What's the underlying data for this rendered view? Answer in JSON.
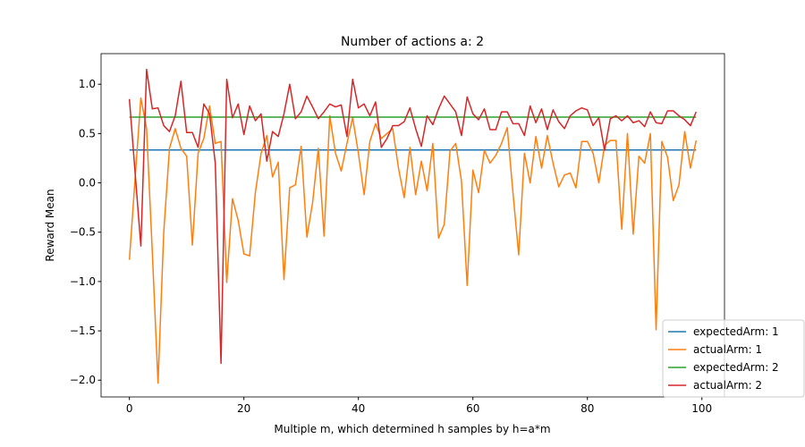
{
  "chart_data": {
    "type": "line",
    "title": "Number of actions a: 2",
    "xlabel": "Multiple m, which determined h samples by h=a*m",
    "ylabel": "Reward Mean",
    "x": [
      0,
      1,
      2,
      3,
      4,
      5,
      6,
      7,
      8,
      9,
      10,
      11,
      12,
      13,
      14,
      15,
      16,
      17,
      18,
      19,
      20,
      21,
      22,
      23,
      24,
      25,
      26,
      27,
      28,
      29,
      30,
      31,
      32,
      33,
      34,
      35,
      36,
      37,
      38,
      39,
      40,
      41,
      42,
      43,
      44,
      45,
      46,
      47,
      48,
      49,
      50,
      51,
      52,
      53,
      54,
      55,
      56,
      57,
      58,
      59,
      60,
      61,
      62,
      63,
      64,
      65,
      66,
      67,
      68,
      69,
      70,
      71,
      72,
      73,
      74,
      75,
      76,
      77,
      78,
      79,
      80,
      81,
      82,
      83,
      84,
      85,
      86,
      87,
      88,
      89,
      90,
      91,
      92,
      93,
      94,
      95,
      96,
      97,
      98,
      99
    ],
    "series": [
      {
        "name": "expectedArm: 1",
        "color": "#1f77b4",
        "values": [
          0.333,
          0.333,
          0.333,
          0.333,
          0.333,
          0.333,
          0.333,
          0.333,
          0.333,
          0.333,
          0.333,
          0.333,
          0.333,
          0.333,
          0.333,
          0.333,
          0.333,
          0.333,
          0.333,
          0.333,
          0.333,
          0.333,
          0.333,
          0.333,
          0.333,
          0.333,
          0.333,
          0.333,
          0.333,
          0.333,
          0.333,
          0.333,
          0.333,
          0.333,
          0.333,
          0.333,
          0.333,
          0.333,
          0.333,
          0.333,
          0.333,
          0.333,
          0.333,
          0.333,
          0.333,
          0.333,
          0.333,
          0.333,
          0.333,
          0.333,
          0.333,
          0.333,
          0.333,
          0.333,
          0.333,
          0.333,
          0.333,
          0.333,
          0.333,
          0.333,
          0.333,
          0.333,
          0.333,
          0.333,
          0.333,
          0.333,
          0.333,
          0.333,
          0.333,
          0.333,
          0.333,
          0.333,
          0.333,
          0.333,
          0.333,
          0.333,
          0.333,
          0.333,
          0.333,
          0.333,
          0.333,
          0.333,
          0.333,
          0.333,
          0.333,
          0.333,
          0.333,
          0.333,
          0.333,
          0.333,
          0.333,
          0.333,
          0.333,
          0.333,
          0.333,
          0.333,
          0.333,
          0.333,
          0.333,
          0.333
        ]
      },
      {
        "name": "actualArm: 1",
        "color": "#ff7f0e",
        "values": [
          -0.78,
          0.05,
          0.86,
          0.55,
          -0.7,
          -2.03,
          -0.5,
          0.35,
          0.55,
          0.35,
          0.27,
          -0.63,
          0.3,
          0.45,
          0.78,
          0.4,
          0.42,
          -1.01,
          -0.16,
          -0.38,
          -0.72,
          -0.74,
          -0.1,
          0.3,
          0.48,
          0.06,
          0.21,
          -0.98,
          -0.05,
          -0.02,
          0.37,
          -0.55,
          -0.2,
          0.35,
          -0.54,
          0.68,
          0.3,
          0.12,
          0.4,
          0.66,
          0.3,
          -0.12,
          0.42,
          0.6,
          0.45,
          0.5,
          0.55,
          0.15,
          -0.15,
          0.36,
          -0.12,
          0.22,
          -0.08,
          0.4,
          -0.56,
          -0.42,
          0.32,
          0.4,
          0.02,
          -1.04,
          0.13,
          -0.1,
          0.33,
          0.2,
          0.28,
          0.4,
          0.56,
          -0.1,
          -0.73,
          0.3,
          0.0,
          0.47,
          0.15,
          0.48,
          0.2,
          -0.04,
          0.08,
          0.1,
          -0.05,
          0.42,
          0.42,
          0.3,
          0.0,
          0.38,
          0.43,
          0.43,
          -0.47,
          0.5,
          -0.52,
          0.27,
          0.2,
          0.5,
          -1.49,
          0.42,
          0.26,
          -0.18,
          -0.02,
          0.52,
          0.15,
          0.43
        ]
      },
      {
        "name": "expectedArm: 2",
        "color": "#2ca02c",
        "values": [
          0.667,
          0.667,
          0.667,
          0.667,
          0.667,
          0.667,
          0.667,
          0.667,
          0.667,
          0.667,
          0.667,
          0.667,
          0.667,
          0.667,
          0.667,
          0.667,
          0.667,
          0.667,
          0.667,
          0.667,
          0.667,
          0.667,
          0.667,
          0.667,
          0.667,
          0.667,
          0.667,
          0.667,
          0.667,
          0.667,
          0.667,
          0.667,
          0.667,
          0.667,
          0.667,
          0.667,
          0.667,
          0.667,
          0.667,
          0.667,
          0.667,
          0.667,
          0.667,
          0.667,
          0.667,
          0.667,
          0.667,
          0.667,
          0.667,
          0.667,
          0.667,
          0.667,
          0.667,
          0.667,
          0.667,
          0.667,
          0.667,
          0.667,
          0.667,
          0.667,
          0.667,
          0.667,
          0.667,
          0.667,
          0.667,
          0.667,
          0.667,
          0.667,
          0.667,
          0.667,
          0.667,
          0.667,
          0.667,
          0.667,
          0.667,
          0.667,
          0.667,
          0.667,
          0.667,
          0.667,
          0.667,
          0.667,
          0.667,
          0.667,
          0.667,
          0.667,
          0.667,
          0.667,
          0.667,
          0.667,
          0.667,
          0.667,
          0.667,
          0.667,
          0.667,
          0.667,
          0.667,
          0.667,
          0.667,
          0.667
        ]
      },
      {
        "name": "actualArm: 2",
        "color": "#d62728",
        "values": [
          0.85,
          0.1,
          -0.64,
          1.15,
          0.75,
          0.76,
          0.58,
          0.52,
          0.68,
          1.03,
          0.51,
          0.51,
          0.36,
          0.8,
          0.7,
          0.2,
          -1.83,
          1.05,
          0.66,
          0.8,
          0.49,
          0.78,
          0.63,
          0.7,
          0.22,
          0.52,
          0.47,
          0.7,
          1.0,
          0.65,
          0.72,
          0.88,
          0.77,
          0.65,
          0.72,
          0.8,
          0.77,
          0.79,
          0.47,
          1.05,
          0.76,
          0.8,
          0.68,
          0.82,
          0.36,
          0.45,
          0.58,
          0.58,
          0.62,
          0.76,
          0.55,
          0.37,
          0.68,
          0.59,
          0.75,
          0.88,
          0.8,
          0.72,
          0.48,
          0.87,
          0.7,
          0.64,
          0.75,
          0.54,
          0.54,
          0.72,
          0.72,
          0.6,
          0.6,
          0.48,
          0.78,
          0.61,
          0.75,
          0.54,
          0.74,
          0.62,
          0.55,
          0.68,
          0.73,
          0.76,
          0.74,
          0.58,
          0.66,
          0.33,
          0.65,
          0.68,
          0.63,
          0.68,
          0.61,
          0.63,
          0.57,
          0.72,
          0.61,
          0.6,
          0.73,
          0.73,
          0.68,
          0.64,
          0.58,
          0.72
        ]
      }
    ],
    "xlim": [
      -4.95,
      103.95
    ],
    "xticks": [
      0,
      20,
      40,
      60,
      80,
      100
    ],
    "ylim": [
      -2.17,
      1.31
    ],
    "yticks": [
      {
        "value": -2,
        "label": "−2.0"
      },
      {
        "value": -1.5,
        "label": "−1.5"
      },
      {
        "value": -1,
        "label": "−1.0"
      },
      {
        "value": -0.5,
        "label": "−0.5"
      },
      {
        "value": 0,
        "label": "0.0"
      },
      {
        "value": 0.5,
        "label": "0.5"
      },
      {
        "value": 1,
        "label": "1.0"
      }
    ],
    "legend": "lower right",
    "grid": false
  }
}
